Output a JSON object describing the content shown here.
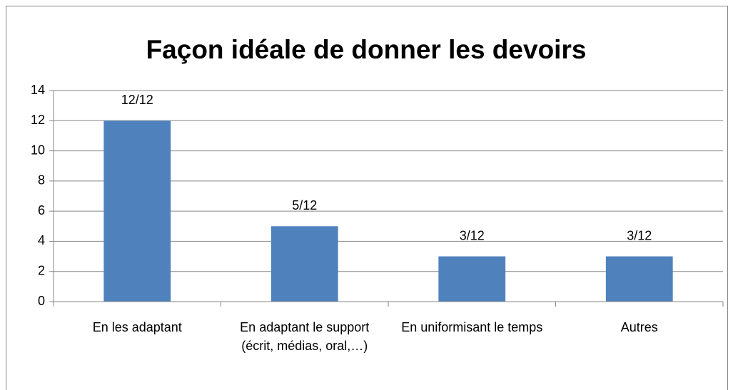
{
  "chart_data": {
    "type": "bar",
    "title": "Façon idéale de donner les devoirs",
    "categories": [
      "En les adaptant",
      "En adaptant le support (écrit, médias, oral,…)",
      "En uniformisant le temps",
      "Autres"
    ],
    "values": [
      12,
      5,
      3,
      3
    ],
    "value_labels": [
      "12/12",
      "5/12",
      "3/12",
      "3/12"
    ],
    "color": "#4f81bd",
    "ylim": [
      0,
      14
    ],
    "yticks": [
      0,
      2,
      4,
      6,
      8,
      10,
      12,
      14
    ],
    "grid": true
  }
}
